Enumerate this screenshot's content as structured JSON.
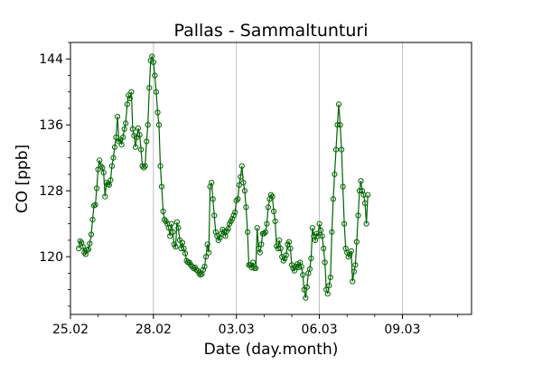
{
  "chart_data": {
    "type": "line",
    "title": "Pallas - Sammaltunturi",
    "xlabel": "Date (day.month)",
    "ylabel": "CO [ppb]",
    "x_ticks": [
      {
        "day": 0,
        "label": "25.02"
      },
      {
        "day": 3,
        "label": "28.02"
      },
      {
        "day": 6,
        "label": "03.03"
      },
      {
        "day": 9,
        "label": "06.03"
      },
      {
        "day": 12,
        "label": "09.03"
      }
    ],
    "y_ticks": [
      120,
      128,
      136,
      144
    ],
    "xlim": [
      0,
      14.5
    ],
    "ylim": [
      113,
      146
    ],
    "grid": "vertical at major x ticks",
    "line_color": "#006400",
    "marker": "open circle",
    "series": [
      {
        "values": [
          [
            0.3,
            121.0
          ],
          [
            0.35,
            121.9
          ],
          [
            0.4,
            121.7
          ],
          [
            0.45,
            121.2
          ],
          [
            0.5,
            120.5
          ],
          [
            0.55,
            120.3
          ],
          [
            0.6,
            120.8
          ],
          [
            0.65,
            120.9
          ],
          [
            0.7,
            121.6
          ],
          [
            0.75,
            122.7
          ],
          [
            0.8,
            124.5
          ],
          [
            0.85,
            126.2
          ],
          [
            0.9,
            126.3
          ],
          [
            0.95,
            128.3
          ],
          [
            1.0,
            130.6
          ],
          [
            1.05,
            131.7
          ],
          [
            1.1,
            131.0
          ],
          [
            1.15,
            130.8
          ],
          [
            1.2,
            130.2
          ],
          [
            1.25,
            127.3
          ],
          [
            1.3,
            129.0
          ],
          [
            1.35,
            128.8
          ],
          [
            1.4,
            128.7
          ],
          [
            1.45,
            129.3
          ],
          [
            1.5,
            131.0
          ],
          [
            1.55,
            132.0
          ],
          [
            1.6,
            133.3
          ],
          [
            1.65,
            134.5
          ],
          [
            1.7,
            137.0
          ],
          [
            1.75,
            134.0
          ],
          [
            1.8,
            134.2
          ],
          [
            1.85,
            133.6
          ],
          [
            1.9,
            134.5
          ],
          [
            1.95,
            135.5
          ],
          [
            2.0,
            136.2
          ],
          [
            2.05,
            138.5
          ],
          [
            2.1,
            139.6
          ],
          [
            2.15,
            139.2
          ],
          [
            2.2,
            140.0
          ],
          [
            2.25,
            135.5
          ],
          [
            2.3,
            134.7
          ],
          [
            2.35,
            133.3
          ],
          [
            2.4,
            134.5
          ],
          [
            2.45,
            135.6
          ],
          [
            2.5,
            134.8
          ],
          [
            2.55,
            133.0
          ],
          [
            2.6,
            131.0
          ],
          [
            2.65,
            130.8
          ],
          [
            2.7,
            131.0
          ],
          [
            2.75,
            134.0
          ],
          [
            2.8,
            136.0
          ],
          [
            2.85,
            140.5
          ],
          [
            2.9,
            143.8
          ],
          [
            2.95,
            144.3
          ],
          [
            3.0,
            143.6
          ],
          [
            3.05,
            142.0
          ],
          [
            3.1,
            140.0
          ],
          [
            3.15,
            137.5
          ],
          [
            3.2,
            136.0
          ],
          [
            3.25,
            131.0
          ],
          [
            3.3,
            128.5
          ],
          [
            3.35,
            125.5
          ],
          [
            3.4,
            124.5
          ],
          [
            3.45,
            124.3
          ],
          [
            3.5,
            124.0
          ],
          [
            3.55,
            123.5
          ],
          [
            3.6,
            122.5
          ],
          [
            3.65,
            124.0
          ],
          [
            3.7,
            123.0
          ],
          [
            3.75,
            121.5
          ],
          [
            3.8,
            121.2
          ],
          [
            3.85,
            124.2
          ],
          [
            3.9,
            123.5
          ],
          [
            3.95,
            122.0
          ],
          [
            4.0,
            121.0
          ],
          [
            4.05,
            121.7
          ],
          [
            4.1,
            121.0
          ],
          [
            4.15,
            120.4
          ],
          [
            4.2,
            119.5
          ],
          [
            4.25,
            119.3
          ],
          [
            4.3,
            119.3
          ],
          [
            4.35,
            119.0
          ],
          [
            4.4,
            118.8
          ],
          [
            4.45,
            118.6
          ],
          [
            4.5,
            118.7
          ],
          [
            4.55,
            118.4
          ],
          [
            4.6,
            118.3
          ],
          [
            4.65,
            118.0
          ],
          [
            4.7,
            117.8
          ],
          [
            4.75,
            117.9
          ],
          [
            4.8,
            118.4
          ],
          [
            4.85,
            118.8
          ],
          [
            4.9,
            120.0
          ],
          [
            4.95,
            121.5
          ],
          [
            5.0,
            120.5
          ],
          [
            5.05,
            128.5
          ],
          [
            5.1,
            129.0
          ],
          [
            5.15,
            127.0
          ],
          [
            5.2,
            125.0
          ],
          [
            5.25,
            123.0
          ],
          [
            5.3,
            122.5
          ],
          [
            5.35,
            122.0
          ],
          [
            5.4,
            122.3
          ],
          [
            5.45,
            122.8
          ],
          [
            5.5,
            123.3
          ],
          [
            5.55,
            123.0
          ],
          [
            5.6,
            122.5
          ],
          [
            5.65,
            123.1
          ],
          [
            5.7,
            123.4
          ],
          [
            5.75,
            124.0
          ],
          [
            5.8,
            124.3
          ],
          [
            5.85,
            124.6
          ],
          [
            5.9,
            125.0
          ],
          [
            5.95,
            125.4
          ],
          [
            6.0,
            126.8
          ],
          [
            6.05,
            127.0
          ],
          [
            6.1,
            128.7
          ],
          [
            6.15,
            129.7
          ],
          [
            6.2,
            131.0
          ],
          [
            6.25,
            129.0
          ],
          [
            6.3,
            128.0
          ],
          [
            6.35,
            126.0
          ],
          [
            6.4,
            123.0
          ],
          [
            6.45,
            119.0
          ],
          [
            6.5,
            119.0
          ],
          [
            6.55,
            118.7
          ],
          [
            6.6,
            119.3
          ],
          [
            6.65,
            118.6
          ],
          [
            6.7,
            118.6
          ],
          [
            6.75,
            123.5
          ],
          [
            6.8,
            121.0
          ],
          [
            6.85,
            120.5
          ],
          [
            6.9,
            121.5
          ],
          [
            6.95,
            122.8
          ],
          [
            7.0,
            122.8
          ],
          [
            7.05,
            123.0
          ],
          [
            7.1,
            124.0
          ],
          [
            7.15,
            126.0
          ],
          [
            7.2,
            127.0
          ],
          [
            7.25,
            127.5
          ],
          [
            7.3,
            127.3
          ],
          [
            7.35,
            125.5
          ],
          [
            7.4,
            124.3
          ],
          [
            7.45,
            121.3
          ],
          [
            7.5,
            121.0
          ],
          [
            7.55,
            122.0
          ],
          [
            7.6,
            121.0
          ],
          [
            7.65,
            120.0
          ],
          [
            7.7,
            119.5
          ],
          [
            7.75,
            119.8
          ],
          [
            7.8,
            120.2
          ],
          [
            7.85,
            121.5
          ],
          [
            7.9,
            121.8
          ],
          [
            7.95,
            121.0
          ],
          [
            8.0,
            119.0
          ],
          [
            8.05,
            118.6
          ],
          [
            8.1,
            118.3
          ],
          [
            8.15,
            118.8
          ],
          [
            8.2,
            119.1
          ],
          [
            8.25,
            118.7
          ],
          [
            8.3,
            119.3
          ],
          [
            8.35,
            118.8
          ],
          [
            8.4,
            117.8
          ],
          [
            8.45,
            116.0
          ],
          [
            8.5,
            115.0
          ],
          [
            8.55,
            116.3
          ],
          [
            8.6,
            118.0
          ],
          [
            8.65,
            118.5
          ],
          [
            8.7,
            119.8
          ],
          [
            8.75,
            123.5
          ],
          [
            8.8,
            122.5
          ],
          [
            8.85,
            122.0
          ],
          [
            8.9,
            122.8
          ],
          [
            8.95,
            122.5
          ],
          [
            9.0,
            124.0
          ],
          [
            9.05,
            123.2
          ],
          [
            9.1,
            122.5
          ],
          [
            9.15,
            121.0
          ],
          [
            9.2,
            119.3
          ],
          [
            9.25,
            116.0
          ],
          [
            9.3,
            115.5
          ],
          [
            9.35,
            116.5
          ],
          [
            9.4,
            117.5
          ],
          [
            9.45,
            123.0
          ],
          [
            9.5,
            127.0
          ],
          [
            9.55,
            130.0
          ],
          [
            9.6,
            133.0
          ],
          [
            9.65,
            136.0
          ],
          [
            9.7,
            138.5
          ],
          [
            9.75,
            136.0
          ],
          [
            9.8,
            133.0
          ],
          [
            9.85,
            128.5
          ],
          [
            9.9,
            124.0
          ],
          [
            9.95,
            121.0
          ],
          [
            10.0,
            120.5
          ],
          [
            10.05,
            120.0
          ],
          [
            10.1,
            120.3
          ],
          [
            10.15,
            120.7
          ],
          [
            10.2,
            117.0
          ],
          [
            10.25,
            118.2
          ],
          [
            10.3,
            119.0
          ],
          [
            10.35,
            121.8
          ],
          [
            10.4,
            125.0
          ],
          [
            10.45,
            128.0
          ],
          [
            10.5,
            129.2
          ],
          [
            10.55,
            128.0
          ],
          [
            10.6,
            127.5
          ],
          [
            10.65,
            126.5
          ],
          [
            10.7,
            124.0
          ],
          [
            10.75,
            127.5
          ]
        ]
      }
    ]
  }
}
